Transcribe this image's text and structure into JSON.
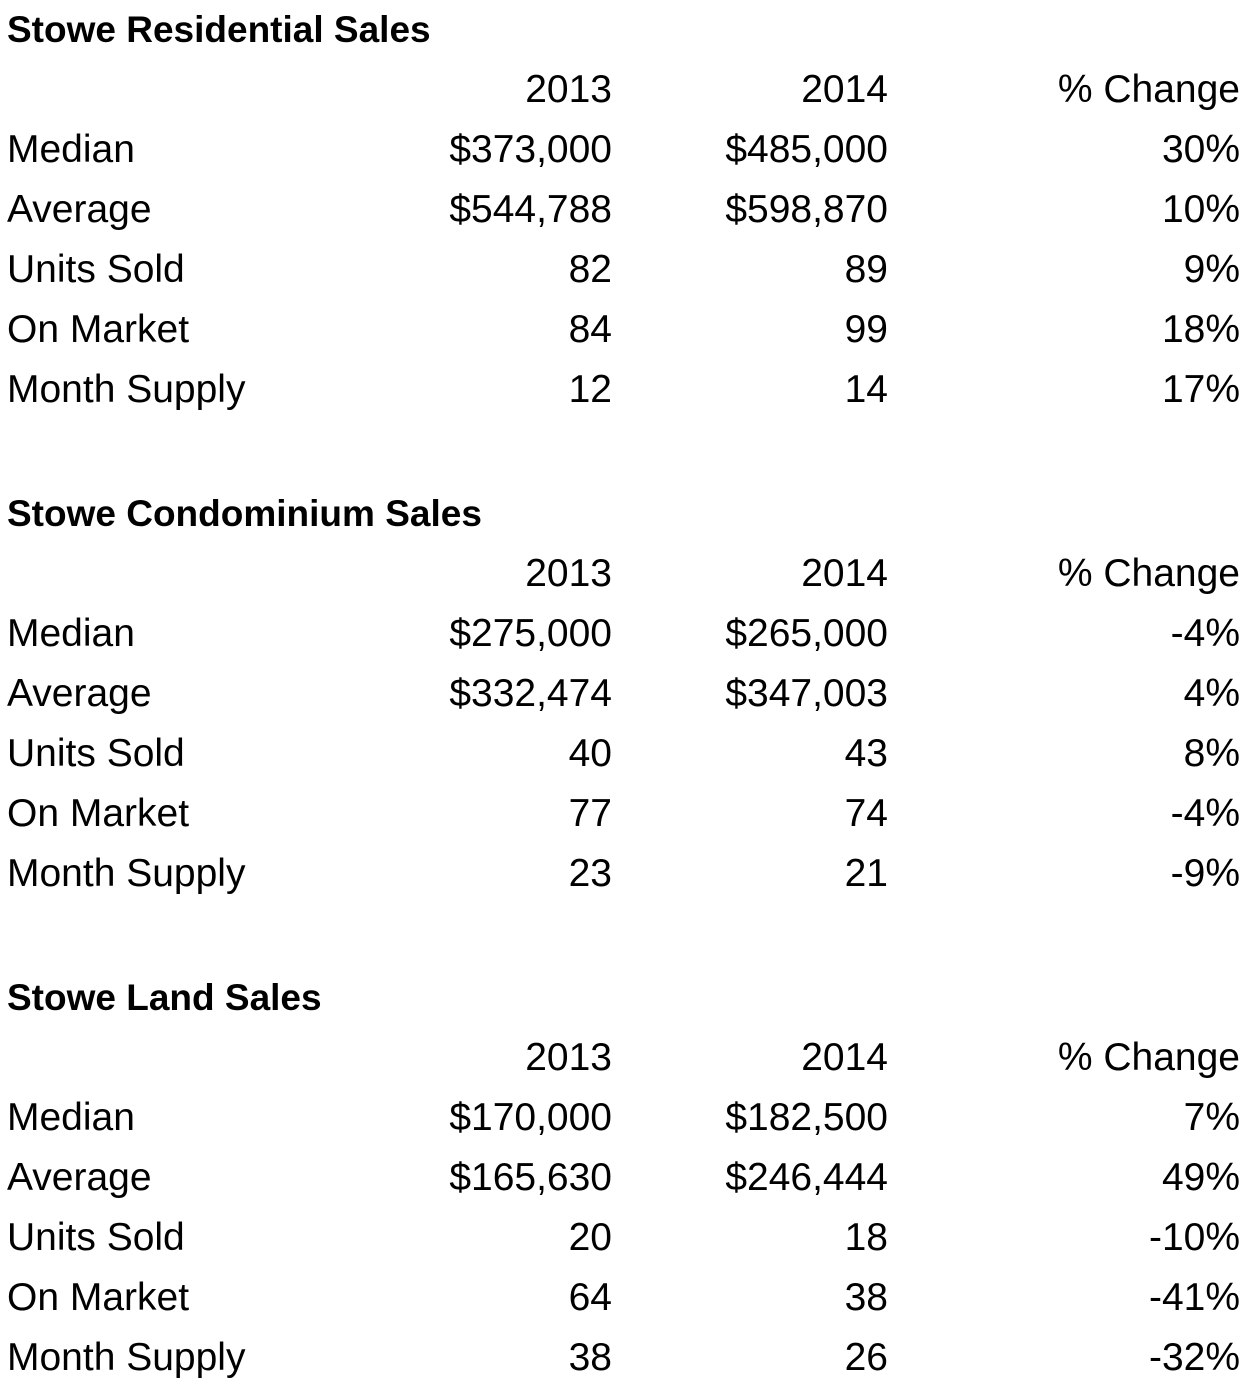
{
  "columns": {
    "year1": "2013",
    "year2": "2014",
    "change": "% Change"
  },
  "sections": [
    {
      "title": "Stowe Residential Sales",
      "rows": [
        {
          "label": "Median",
          "y2013": "$373,000",
          "y2014": "$485,000",
          "change": "30%"
        },
        {
          "label": "Average",
          "y2013": "$544,788",
          "y2014": "$598,870",
          "change": "10%"
        },
        {
          "label": "Units Sold",
          "y2013": "82",
          "y2014": "89",
          "change": "9%"
        },
        {
          "label": "On Market",
          "y2013": "84",
          "y2014": "99",
          "change": "18%"
        },
        {
          "label": "Month Supply",
          "y2013": "12",
          "y2014": "14",
          "change": "17%"
        }
      ]
    },
    {
      "title": "Stowe Condominium Sales",
      "rows": [
        {
          "label": "Median",
          "y2013": "$275,000",
          "y2014": "$265,000",
          "change": "-4%"
        },
        {
          "label": "Average",
          "y2013": "$332,474",
          "y2014": "$347,003",
          "change": "4%"
        },
        {
          "label": "Units Sold",
          "y2013": "40",
          "y2014": "43",
          "change": "8%"
        },
        {
          "label": "On Market",
          "y2013": "77",
          "y2014": "74",
          "change": "-4%"
        },
        {
          "label": "Month Supply",
          "y2013": "23",
          "y2014": "21",
          "change": "-9%"
        }
      ]
    },
    {
      "title": "Stowe Land Sales",
      "rows": [
        {
          "label": "Median",
          "y2013": "$170,000",
          "y2014": "$182,500",
          "change": "7%"
        },
        {
          "label": "Average",
          "y2013": "$165,630",
          "y2014": "$246,444",
          "change": "49%"
        },
        {
          "label": "Units Sold",
          "y2013": "20",
          "y2014": "18",
          "change": "-10%"
        },
        {
          "label": "On Market",
          "y2013": "64",
          "y2014": "38",
          "change": "-41%"
        },
        {
          "label": "Month Supply",
          "y2013": "38",
          "y2014": "26",
          "change": "-32%"
        }
      ]
    }
  ]
}
